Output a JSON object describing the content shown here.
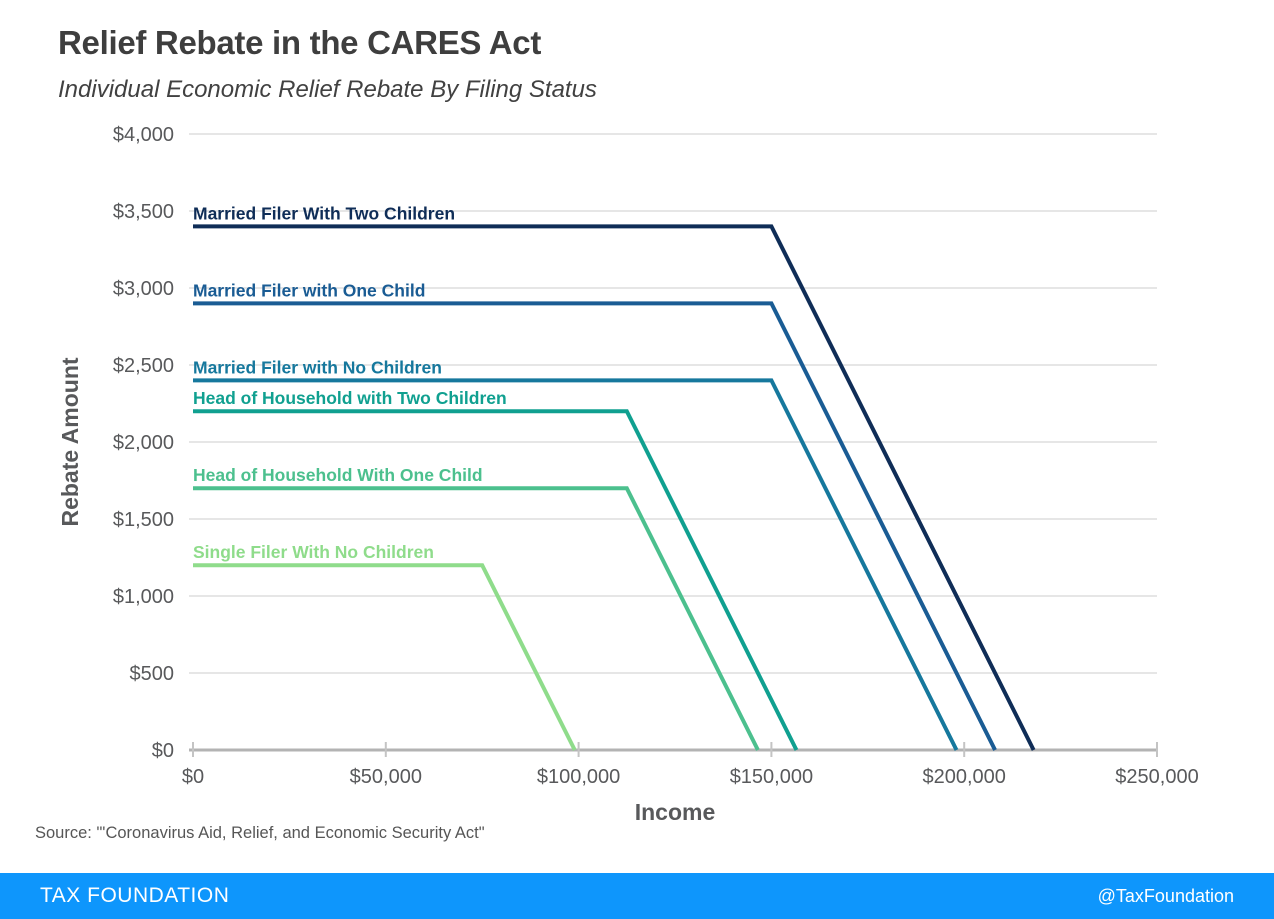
{
  "header": {
    "title": "Relief Rebate in the CARES Act",
    "subtitle": "Individual Economic Relief Rebate By Filing Status"
  },
  "source_note": "Source: \"'Coronavirus Aid, Relief, and Economic Security Act\"",
  "footer": {
    "brand": "TAX FOUNDATION",
    "handle": "@TaxFoundation",
    "bar_color": "#0e96fc"
  },
  "chart_data": {
    "type": "line",
    "title": "Relief Rebate in the CARES Act",
    "subtitle": "Individual Economic Relief Rebate By Filing Status",
    "xlabel": "Income",
    "ylabel": "Rebate Amount",
    "xlim": [
      0,
      250000
    ],
    "ylim": [
      0,
      4000
    ],
    "x_ticks": [
      0,
      50000,
      100000,
      150000,
      200000,
      250000
    ],
    "x_tick_labels": [
      "$0",
      "$50,000",
      "$100,000",
      "$150,000",
      "$200,000",
      "$250,000"
    ],
    "y_ticks": [
      0,
      500,
      1000,
      1500,
      2000,
      2500,
      3000,
      3500,
      4000
    ],
    "y_tick_labels": [
      "$0",
      "$500",
      "$1,000",
      "$1,500",
      "$2,000",
      "$2,500",
      "$3,000",
      "$3,500",
      "$4,000"
    ],
    "grid": "horizontal",
    "legend": "inline-labels-above-lines",
    "grid_color": "#dedede",
    "axis_color": "#b3b3b3",
    "tick_color": "#c4c4c4",
    "tick_label_color": "#58595b",
    "axis_title_color": "#58595b",
    "series": [
      {
        "name": "Married Filer With Two Children",
        "color": "#0f2d57",
        "points": [
          [
            0,
            3400
          ],
          [
            150000,
            3400
          ],
          [
            218000,
            0
          ]
        ]
      },
      {
        "name": "Married Filer with One Child",
        "color": "#1a5c94",
        "points": [
          [
            0,
            2900
          ],
          [
            150000,
            2900
          ],
          [
            208000,
            0
          ]
        ]
      },
      {
        "name": "Married Filer with No Children",
        "color": "#16789d",
        "points": [
          [
            0,
            2400
          ],
          [
            150000,
            2400
          ],
          [
            198000,
            0
          ]
        ]
      },
      {
        "name": "Head of Household with Two Children",
        "color": "#10a090",
        "points": [
          [
            0,
            2200
          ],
          [
            112500,
            2200
          ],
          [
            156500,
            0
          ]
        ]
      },
      {
        "name": "Head of Household With One Child",
        "color": "#4cc08e",
        "points": [
          [
            0,
            1700
          ],
          [
            112500,
            1700
          ],
          [
            146500,
            0
          ]
        ]
      },
      {
        "name": "Single Filer With No Children",
        "color": "#8fdc8b",
        "points": [
          [
            0,
            1200
          ],
          [
            75000,
            1200
          ],
          [
            99000,
            0
          ]
        ]
      }
    ]
  }
}
